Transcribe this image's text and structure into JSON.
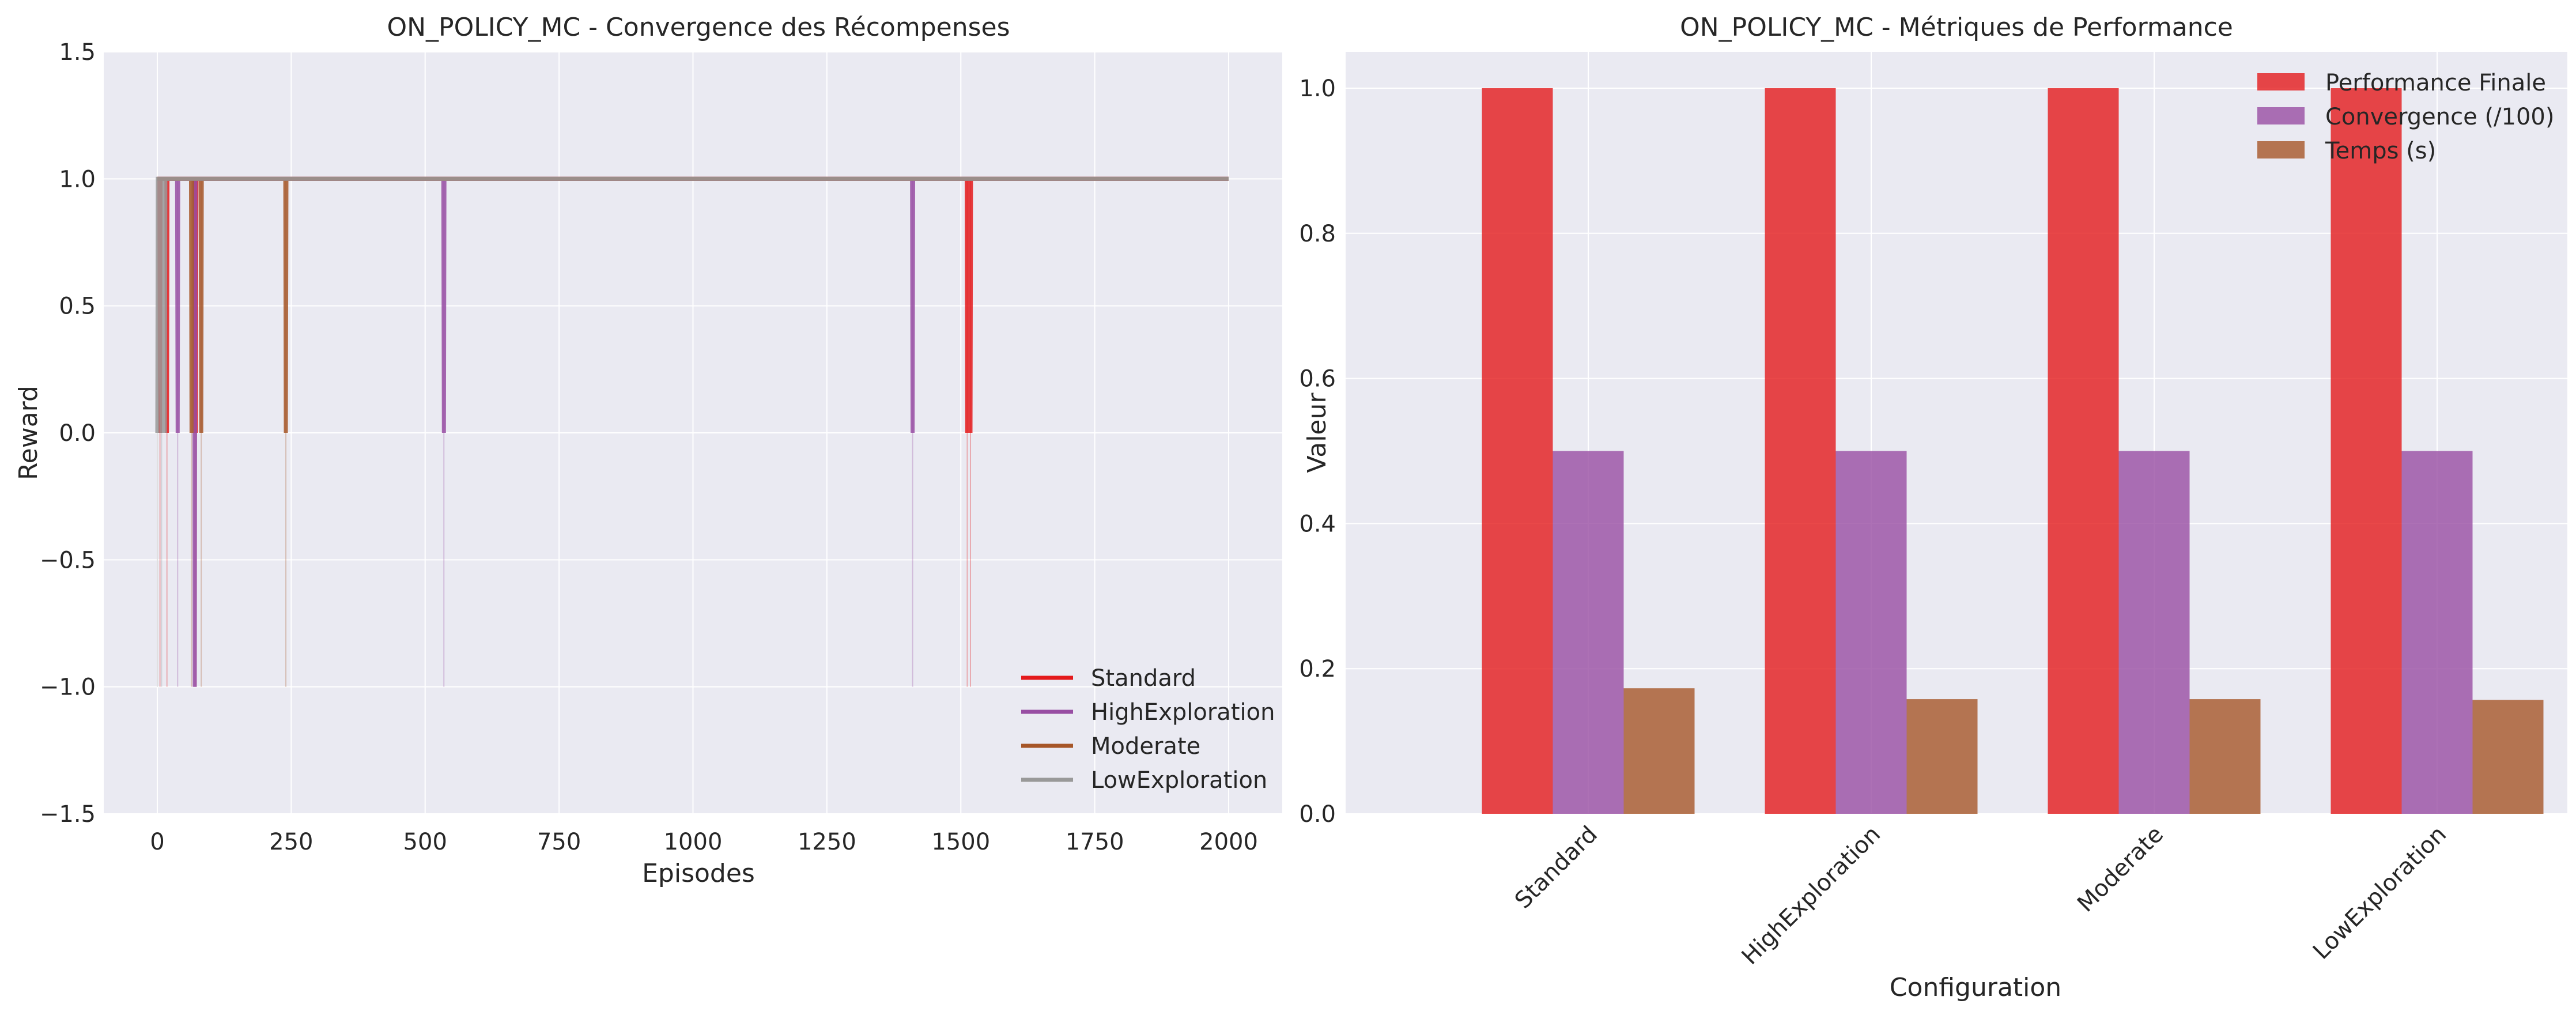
{
  "chart_data": [
    {
      "type": "line",
      "title": "ON_POLICY_MC - Convergence des Récompenses",
      "xlabel": "Episodes",
      "ylabel": "Reward",
      "xlim": [
        -100,
        2100
      ],
      "ylim": [
        -1.5,
        1.5
      ],
      "x_ticks": [
        0,
        250,
        500,
        750,
        1000,
        1250,
        1500,
        1750,
        2000
      ],
      "x_tick_labels": [
        "0",
        "250",
        "500",
        "750",
        "1000",
        "1250",
        "1500",
        "1750",
        "2000"
      ],
      "y_ticks": [
        -1.5,
        -1.0,
        -0.5,
        0.0,
        0.5,
        1.0,
        1.5
      ],
      "y_tick_labels": [
        "−1.5",
        "−1.0",
        "−0.5",
        "0.0",
        "0.5",
        "1.0",
        "1.5"
      ],
      "grid": true,
      "legend_position": "lower-right",
      "episodes": [
        0,
        2000
      ],
      "baseline_reward": 1.0,
      "series": [
        {
          "name": "Standard",
          "color": "#e41a1c",
          "drops_smoothed": [
            {
              "x": 5,
              "y": 0.0
            },
            {
              "x": 18,
              "y": 0.0
            },
            {
              "x": 72,
              "y": 0.0
            },
            {
              "x": 1512,
              "y": 0.0
            },
            {
              "x": 1518,
              "y": 0.0
            }
          ],
          "drops_raw": [
            {
              "x": 5,
              "y": -1.0
            },
            {
              "x": 18,
              "y": -1.0
            },
            {
              "x": 72,
              "y": -1.0
            },
            {
              "x": 1512,
              "y": -1.0
            },
            {
              "x": 1518,
              "y": -1.0
            }
          ]
        },
        {
          "name": "HighExploration",
          "color": "#984ea3",
          "drops_smoothed": [
            {
              "x": 38,
              "y": 0.0
            },
            {
              "x": 70,
              "y": -1.0
            },
            {
              "x": 535,
              "y": 0.0
            },
            {
              "x": 1410,
              "y": 0.0
            }
          ],
          "drops_raw": [
            {
              "x": 38,
              "y": -1.0
            },
            {
              "x": 70,
              "y": -1.0
            },
            {
              "x": 535,
              "y": -1.0
            },
            {
              "x": 1410,
              "y": -1.0
            }
          ]
        },
        {
          "name": "Moderate",
          "color": "#a65628",
          "drops_smoothed": [
            {
              "x": 64,
              "y": 0.0
            },
            {
              "x": 82,
              "y": 0.0
            },
            {
              "x": 240,
              "y": 0.0
            }
          ],
          "drops_raw": [
            {
              "x": 64,
              "y": -1.0
            },
            {
              "x": 82,
              "y": -1.0
            },
            {
              "x": 240,
              "y": -1.0
            }
          ]
        },
        {
          "name": "LowExploration",
          "color": "#999999",
          "drops_smoothed": [
            {
              "x": 0,
              "y": 0.0
            },
            {
              "x": 8,
              "y": 0.0
            },
            {
              "x": 14,
              "y": 0.0
            }
          ],
          "drops_raw": [
            {
              "x": 0,
              "y": -1.0
            },
            {
              "x": 8,
              "y": -1.0
            }
          ]
        }
      ]
    },
    {
      "type": "bar",
      "title": "ON_POLICY_MC - Métriques de Performance",
      "xlabel": "Configuration",
      "ylabel": "Valeur",
      "ylim": [
        0,
        1.05
      ],
      "y_ticks": [
        0.0,
        0.2,
        0.4,
        0.6,
        0.8,
        1.0
      ],
      "y_tick_labels": [
        "0.0",
        "0.2",
        "0.4",
        "0.6",
        "0.8",
        "1.0"
      ],
      "grid": true,
      "legend_position": "upper-right",
      "categories": [
        "Standard",
        "HighExploration",
        "Moderate",
        "LowExploration"
      ],
      "series": [
        {
          "name": "Performance Finale",
          "color": "#e41a1c",
          "values": [
            1.0,
            1.0,
            1.0,
            1.0
          ]
        },
        {
          "name": "Convergence (/100)",
          "color": "#984ea3",
          "values": [
            0.5,
            0.5,
            0.5,
            0.5
          ]
        },
        {
          "name": "Temps (s)",
          "color": "#a65628",
          "values": [
            0.173,
            0.158,
            0.158,
            0.157
          ]
        }
      ]
    }
  ]
}
